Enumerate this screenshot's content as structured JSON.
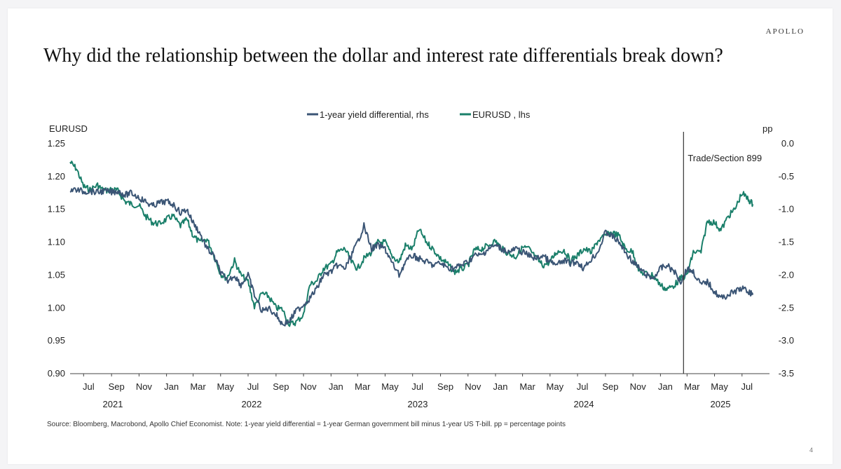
{
  "brand": "APOLLO",
  "title": "Why did the relationship between the dollar and interest rate differentials break down?",
  "source": "Source: Bloomberg, Macrobond, Apollo Chief Economist. Note: 1-year yield differential = 1-year German government bill minus 1-year US T-bill. pp = percentage points",
  "page_number": "4",
  "chart_data": {
    "type": "line",
    "title": "",
    "legend": [
      {
        "name": "1-year yield differential, rhs",
        "color": "#3b5575"
      },
      {
        "name": "EURUSD , lhs",
        "color": "#1a7f6a"
      }
    ],
    "legend_position": "top-center",
    "ylabel_left": "EURUSD",
    "ylabel_right": "pp",
    "ylim_left": [
      0.9,
      1.25
    ],
    "ylim_right": [
      -3.5,
      0.0
    ],
    "yticks_left": [
      "1.25",
      "1.20",
      "1.15",
      "1.10",
      "1.05",
      "1.00",
      "0.95",
      "0.90"
    ],
    "yticks_right": [
      "0.0",
      "-0.5",
      "-1.0",
      "-1.5",
      "-2.0",
      "-2.5",
      "-3.0",
      "-3.5"
    ],
    "x_months": [
      "Jul",
      "Sep",
      "Nov",
      "Jan",
      "Mar",
      "May",
      "Jul",
      "Sep",
      "Nov",
      "Jan",
      "Mar",
      "May",
      "Jul",
      "Sep",
      "Nov",
      "Jan",
      "Mar",
      "May",
      "Jul",
      "Sep",
      "Nov",
      "Jan",
      "Mar",
      "May",
      "Jul"
    ],
    "x_years": [
      "2021",
      "2022",
      "2023",
      "2024",
      "2025"
    ],
    "xlim": [
      "2021-06-01",
      "2025-08-31"
    ],
    "annotation": {
      "date": "2025-03-01",
      "label": "Trade/Section 899"
    },
    "series": [
      {
        "name": "EURUSD , lhs",
        "axis": "left",
        "color": "#1a7f6a",
        "points": [
          [
            "2021-06-01",
            1.222
          ],
          [
            "2021-06-15",
            1.212
          ],
          [
            "2021-07-01",
            1.185
          ],
          [
            "2021-07-15",
            1.18
          ],
          [
            "2021-08-01",
            1.187
          ],
          [
            "2021-08-15",
            1.178
          ],
          [
            "2021-09-01",
            1.181
          ],
          [
            "2021-09-15",
            1.178
          ],
          [
            "2021-10-01",
            1.162
          ],
          [
            "2021-10-15",
            1.158
          ],
          [
            "2021-11-01",
            1.156
          ],
          [
            "2021-11-15",
            1.14
          ],
          [
            "2021-12-01",
            1.13
          ],
          [
            "2021-12-15",
            1.128
          ],
          [
            "2022-01-01",
            1.135
          ],
          [
            "2022-01-15",
            1.14
          ],
          [
            "2022-02-01",
            1.125
          ],
          [
            "2022-02-15",
            1.135
          ],
          [
            "2022-03-01",
            1.11
          ],
          [
            "2022-03-15",
            1.1
          ],
          [
            "2022-04-01",
            1.105
          ],
          [
            "2022-04-15",
            1.082
          ],
          [
            "2022-05-01",
            1.052
          ],
          [
            "2022-05-15",
            1.045
          ],
          [
            "2022-06-01",
            1.072
          ],
          [
            "2022-06-15",
            1.05
          ],
          [
            "2022-07-01",
            1.04
          ],
          [
            "2022-07-15",
            1.002
          ],
          [
            "2022-08-01",
            1.022
          ],
          [
            "2022-08-15",
            1.018
          ],
          [
            "2022-09-01",
            1.0
          ],
          [
            "2022-09-15",
            0.998
          ],
          [
            "2022-10-01",
            0.975
          ],
          [
            "2022-10-15",
            0.978
          ],
          [
            "2022-11-01",
            0.99
          ],
          [
            "2022-11-15",
            1.035
          ],
          [
            "2022-12-01",
            1.042
          ],
          [
            "2022-12-15",
            1.06
          ],
          [
            "2023-01-01",
            1.066
          ],
          [
            "2023-01-15",
            1.085
          ],
          [
            "2023-02-01",
            1.09
          ],
          [
            "2023-02-15",
            1.07
          ],
          [
            "2023-03-01",
            1.06
          ],
          [
            "2023-03-15",
            1.075
          ],
          [
            "2023-04-01",
            1.085
          ],
          [
            "2023-04-15",
            1.1
          ],
          [
            "2023-05-01",
            1.1
          ],
          [
            "2023-05-15",
            1.08
          ],
          [
            "2023-06-01",
            1.07
          ],
          [
            "2023-06-15",
            1.095
          ],
          [
            "2023-07-01",
            1.09
          ],
          [
            "2023-07-15",
            1.12
          ],
          [
            "2023-08-01",
            1.1
          ],
          [
            "2023-08-15",
            1.09
          ],
          [
            "2023-09-01",
            1.075
          ],
          [
            "2023-09-15",
            1.068
          ],
          [
            "2023-10-01",
            1.055
          ],
          [
            "2023-10-15",
            1.058
          ],
          [
            "2023-11-01",
            1.065
          ],
          [
            "2023-11-15",
            1.088
          ],
          [
            "2023-12-01",
            1.09
          ],
          [
            "2023-12-15",
            1.095
          ],
          [
            "2024-01-01",
            1.102
          ],
          [
            "2024-01-15",
            1.09
          ],
          [
            "2024-02-01",
            1.082
          ],
          [
            "2024-02-15",
            1.078
          ],
          [
            "2024-03-01",
            1.092
          ],
          [
            "2024-03-15",
            1.09
          ],
          [
            "2024-04-01",
            1.075
          ],
          [
            "2024-04-15",
            1.065
          ],
          [
            "2024-05-01",
            1.07
          ],
          [
            "2024-05-15",
            1.085
          ],
          [
            "2024-06-01",
            1.088
          ],
          [
            "2024-06-15",
            1.072
          ],
          [
            "2024-07-01",
            1.08
          ],
          [
            "2024-07-15",
            1.09
          ],
          [
            "2024-08-01",
            1.085
          ],
          [
            "2024-08-15",
            1.102
          ],
          [
            "2024-09-01",
            1.11
          ],
          [
            "2024-09-15",
            1.115
          ],
          [
            "2024-10-01",
            1.11
          ],
          [
            "2024-10-15",
            1.09
          ],
          [
            "2024-11-01",
            1.085
          ],
          [
            "2024-11-15",
            1.055
          ],
          [
            "2024-12-01",
            1.052
          ],
          [
            "2024-12-15",
            1.05
          ],
          [
            "2025-01-01",
            1.035
          ],
          [
            "2025-01-15",
            1.028
          ],
          [
            "2025-02-01",
            1.035
          ],
          [
            "2025-02-15",
            1.045
          ],
          [
            "2025-03-01",
            1.05
          ],
          [
            "2025-03-15",
            1.085
          ],
          [
            "2025-04-01",
            1.085
          ],
          [
            "2025-04-15",
            1.132
          ],
          [
            "2025-05-01",
            1.13
          ],
          [
            "2025-05-15",
            1.118
          ],
          [
            "2025-06-01",
            1.14
          ],
          [
            "2025-06-15",
            1.15
          ],
          [
            "2025-07-01",
            1.175
          ],
          [
            "2025-07-15",
            1.165
          ],
          [
            "2025-07-25",
            1.158
          ]
        ]
      },
      {
        "name": "1-year yield differential, rhs",
        "axis": "right",
        "color": "#3b5575",
        "points": [
          [
            "2021-06-01",
            -0.7
          ],
          [
            "2021-06-15",
            -0.7
          ],
          [
            "2021-07-01",
            -0.73
          ],
          [
            "2021-07-15",
            -0.72
          ],
          [
            "2021-08-01",
            -0.74
          ],
          [
            "2021-08-15",
            -0.72
          ],
          [
            "2021-09-01",
            -0.74
          ],
          [
            "2021-09-15",
            -0.72
          ],
          [
            "2021-10-01",
            -0.78
          ],
          [
            "2021-10-15",
            -0.75
          ],
          [
            "2021-11-01",
            -0.82
          ],
          [
            "2021-11-15",
            -0.88
          ],
          [
            "2021-12-01",
            -0.95
          ],
          [
            "2021-12-15",
            -0.9
          ],
          [
            "2022-01-01",
            -0.88
          ],
          [
            "2022-01-15",
            -0.92
          ],
          [
            "2022-02-01",
            -1.05
          ],
          [
            "2022-02-15",
            -1.0
          ],
          [
            "2022-03-01",
            -1.2
          ],
          [
            "2022-03-15",
            -1.35
          ],
          [
            "2022-04-01",
            -1.6
          ],
          [
            "2022-04-15",
            -1.7
          ],
          [
            "2022-05-01",
            -1.95
          ],
          [
            "2022-05-15",
            -2.1
          ],
          [
            "2022-06-01",
            -2.0
          ],
          [
            "2022-06-15",
            -2.15
          ],
          [
            "2022-07-01",
            -2.0
          ],
          [
            "2022-07-15",
            -2.3
          ],
          [
            "2022-08-01",
            -2.55
          ],
          [
            "2022-08-15",
            -2.5
          ],
          [
            "2022-09-01",
            -2.6
          ],
          [
            "2022-09-15",
            -2.75
          ],
          [
            "2022-10-01",
            -2.7
          ],
          [
            "2022-10-15",
            -2.55
          ],
          [
            "2022-11-01",
            -2.45
          ],
          [
            "2022-11-15",
            -2.35
          ],
          [
            "2022-12-01",
            -2.2
          ],
          [
            "2022-12-15",
            -2.0
          ],
          [
            "2023-01-01",
            -1.95
          ],
          [
            "2023-01-15",
            -1.85
          ],
          [
            "2023-02-01",
            -1.9
          ],
          [
            "2023-02-15",
            -1.7
          ],
          [
            "2023-03-01",
            -1.5
          ],
          [
            "2023-03-15",
            -1.25
          ],
          [
            "2023-04-01",
            -1.6
          ],
          [
            "2023-04-15",
            -1.55
          ],
          [
            "2023-05-01",
            -1.6
          ],
          [
            "2023-05-15",
            -1.8
          ],
          [
            "2023-06-01",
            -2.0
          ],
          [
            "2023-06-15",
            -1.8
          ],
          [
            "2023-07-01",
            -1.7
          ],
          [
            "2023-07-15",
            -1.75
          ],
          [
            "2023-08-01",
            -1.8
          ],
          [
            "2023-08-15",
            -1.85
          ],
          [
            "2023-09-01",
            -1.82
          ],
          [
            "2023-09-15",
            -1.88
          ],
          [
            "2023-10-01",
            -1.9
          ],
          [
            "2023-10-15",
            -1.85
          ],
          [
            "2023-11-01",
            -1.8
          ],
          [
            "2023-11-15",
            -1.7
          ],
          [
            "2023-12-01",
            -1.7
          ],
          [
            "2023-12-15",
            -1.6
          ],
          [
            "2024-01-01",
            -1.55
          ],
          [
            "2024-01-15",
            -1.6
          ],
          [
            "2024-02-01",
            -1.65
          ],
          [
            "2024-02-15",
            -1.6
          ],
          [
            "2024-03-01",
            -1.65
          ],
          [
            "2024-03-15",
            -1.7
          ],
          [
            "2024-04-01",
            -1.75
          ],
          [
            "2024-04-15",
            -1.7
          ],
          [
            "2024-05-01",
            -1.8
          ],
          [
            "2024-05-15",
            -1.85
          ],
          [
            "2024-06-01",
            -1.78
          ],
          [
            "2024-06-15",
            -1.82
          ],
          [
            "2024-07-01",
            -1.8
          ],
          [
            "2024-07-15",
            -1.9
          ],
          [
            "2024-08-01",
            -1.75
          ],
          [
            "2024-08-15",
            -1.65
          ],
          [
            "2024-09-01",
            -1.35
          ],
          [
            "2024-09-15",
            -1.4
          ],
          [
            "2024-10-01",
            -1.5
          ],
          [
            "2024-10-15",
            -1.65
          ],
          [
            "2024-11-01",
            -1.8
          ],
          [
            "2024-11-15",
            -1.9
          ],
          [
            "2024-12-01",
            -2.0
          ],
          [
            "2024-12-15",
            -2.05
          ],
          [
            "2025-01-01",
            -1.9
          ],
          [
            "2025-01-15",
            -1.85
          ],
          [
            "2025-02-01",
            -1.95
          ],
          [
            "2025-02-15",
            -2.1
          ],
          [
            "2025-03-01",
            -1.9
          ],
          [
            "2025-03-15",
            -1.95
          ],
          [
            "2025-04-01",
            -2.15
          ],
          [
            "2025-04-15",
            -2.1
          ],
          [
            "2025-05-01",
            -2.25
          ],
          [
            "2025-05-15",
            -2.35
          ],
          [
            "2025-06-01",
            -2.3
          ],
          [
            "2025-06-15",
            -2.25
          ],
          [
            "2025-07-01",
            -2.2
          ],
          [
            "2025-07-15",
            -2.25
          ],
          [
            "2025-07-25",
            -2.3
          ]
        ]
      }
    ]
  }
}
